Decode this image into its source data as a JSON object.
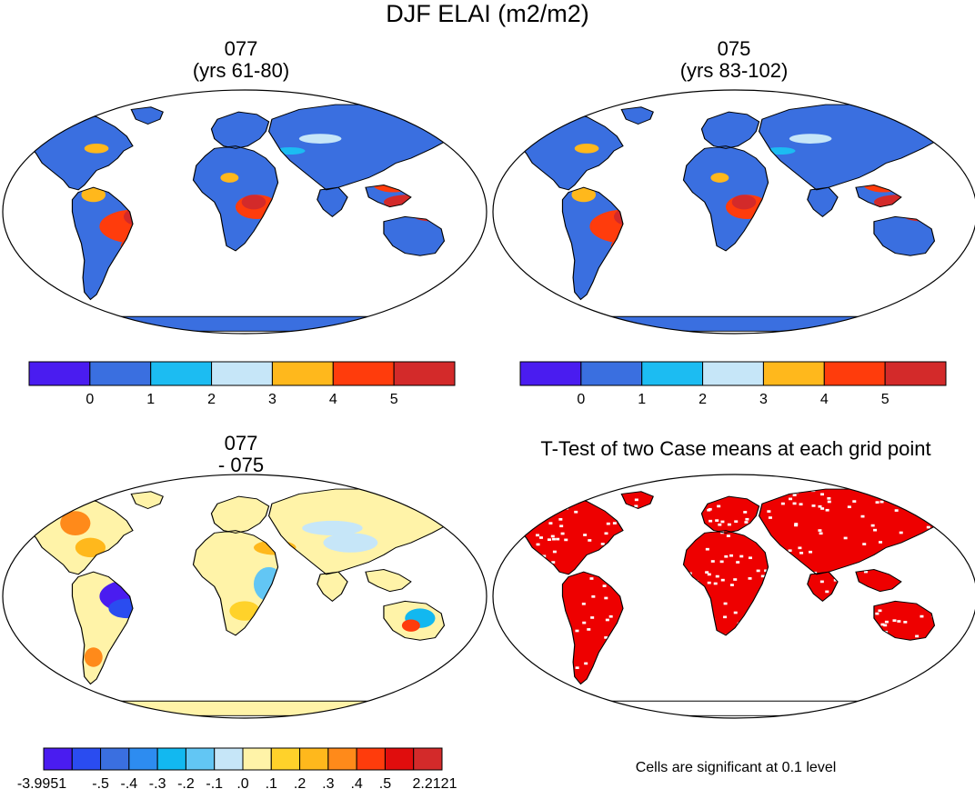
{
  "title": "DJF ELAI (m2/m2)",
  "panels": [
    {
      "id": "p1",
      "title_line1": "077",
      "title_line2": "(yrs 61-80)"
    },
    {
      "id": "p2",
      "title_line1": "075",
      "title_line2": "(yrs 83-102)"
    },
    {
      "id": "p3",
      "title_line1": "077",
      "title_line2": "- 075"
    },
    {
      "id": "p4",
      "title_line1": "T-Test of two Case means at each grid point",
      "title_line2": ""
    }
  ],
  "colorbar_abs": {
    "colors": [
      "#4a1cf0",
      "#3a6fe0",
      "#1cbcf2",
      "#c6e6f8",
      "#ffb81c",
      "#ff3c0c",
      "#d32a2a"
    ],
    "labels": [
      "0",
      "1",
      "2",
      "3",
      "4",
      "5"
    ]
  },
  "colorbar_diff": {
    "colors": [
      "#4a1cf0",
      "#2a4cf0",
      "#3a6fe0",
      "#2d8cf0",
      "#12b8f0",
      "#62c6f4",
      "#c6e6f8",
      "#fff3a8",
      "#ffd22a",
      "#ffb81c",
      "#ff8a1a",
      "#ff3c0c",
      "#e00d0d",
      "#d32a2a"
    ],
    "labels": [
      "-3.9951",
      "-.5",
      "-.4",
      "-.3",
      "-.2",
      "-.1",
      ".0",
      ".1",
      ".2",
      ".3",
      ".4",
      ".5",
      "2.2121"
    ]
  },
  "significance_note": "Cells are significant at 0.1 level",
  "significance_color": "#ee0000"
}
